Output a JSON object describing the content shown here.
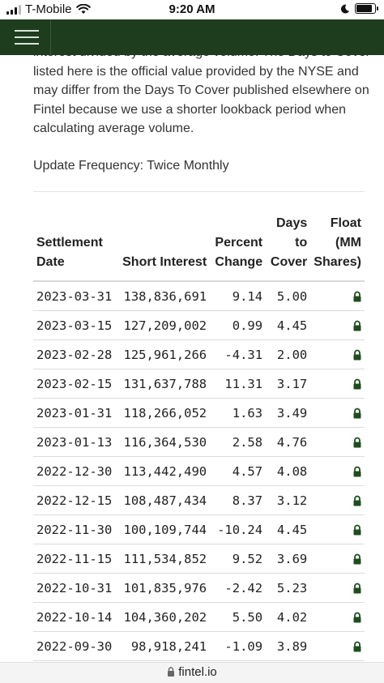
{
  "status_bar": {
    "carrier": "T-Mobile",
    "time": "9:20 AM"
  },
  "intro": {
    "paragraph": "interest divided by the average volume. The Days to Cover listed here is the official value provided by the NYSE and may differ from the Days To Cover published elsewhere on Fintel because we use a shorter lookback period when calculating average volume.",
    "update_frequency": "Update Frequency: Twice Monthly"
  },
  "table": {
    "headers": {
      "settlement_date": "Settlement Date",
      "short_interest": "Short Interest",
      "percent_change": "Percent Change",
      "days_to_cover": "Days to Cover",
      "float": "Float (MM Shares)"
    },
    "rows": [
      {
        "date": "2023-03-31",
        "short_interest": "138,836,691",
        "percent_change": "9.14",
        "days_to_cover": "5.00"
      },
      {
        "date": "2023-03-15",
        "short_interest": "127,209,002",
        "percent_change": "0.99",
        "days_to_cover": "4.45"
      },
      {
        "date": "2023-02-28",
        "short_interest": "125,961,266",
        "percent_change": "-4.31",
        "days_to_cover": "2.00"
      },
      {
        "date": "2023-02-15",
        "short_interest": "131,637,788",
        "percent_change": "11.31",
        "days_to_cover": "3.17"
      },
      {
        "date": "2023-01-31",
        "short_interest": "118,266,052",
        "percent_change": "1.63",
        "days_to_cover": "3.49"
      },
      {
        "date": "2023-01-13",
        "short_interest": "116,364,530",
        "percent_change": "2.58",
        "days_to_cover": "4.76"
      },
      {
        "date": "2022-12-30",
        "short_interest": "113,442,490",
        "percent_change": "4.57",
        "days_to_cover": "4.08"
      },
      {
        "date": "2022-12-15",
        "short_interest": "108,487,434",
        "percent_change": "8.37",
        "days_to_cover": "3.12"
      },
      {
        "date": "2022-11-30",
        "short_interest": "100,109,744",
        "percent_change": "-10.24",
        "days_to_cover": "4.45"
      },
      {
        "date": "2022-11-15",
        "short_interest": "111,534,852",
        "percent_change": "9.52",
        "days_to_cover": "3.69"
      },
      {
        "date": "2022-10-31",
        "short_interest": "101,835,976",
        "percent_change": "-2.42",
        "days_to_cover": "5.23"
      },
      {
        "date": "2022-10-14",
        "short_interest": "104,360,202",
        "percent_change": "5.50",
        "days_to_cover": "4.02"
      },
      {
        "date": "2022-09-30",
        "short_interest": "98,918,241",
        "percent_change": "-1.09",
        "days_to_cover": "3.89"
      }
    ],
    "float_icon": "lock-icon"
  },
  "url_bar": {
    "url": "fintel.io",
    "icon": "padlock-icon"
  },
  "colors": {
    "app_bar": "#1e3d1e",
    "lock_icon": "#1e4d1e"
  }
}
